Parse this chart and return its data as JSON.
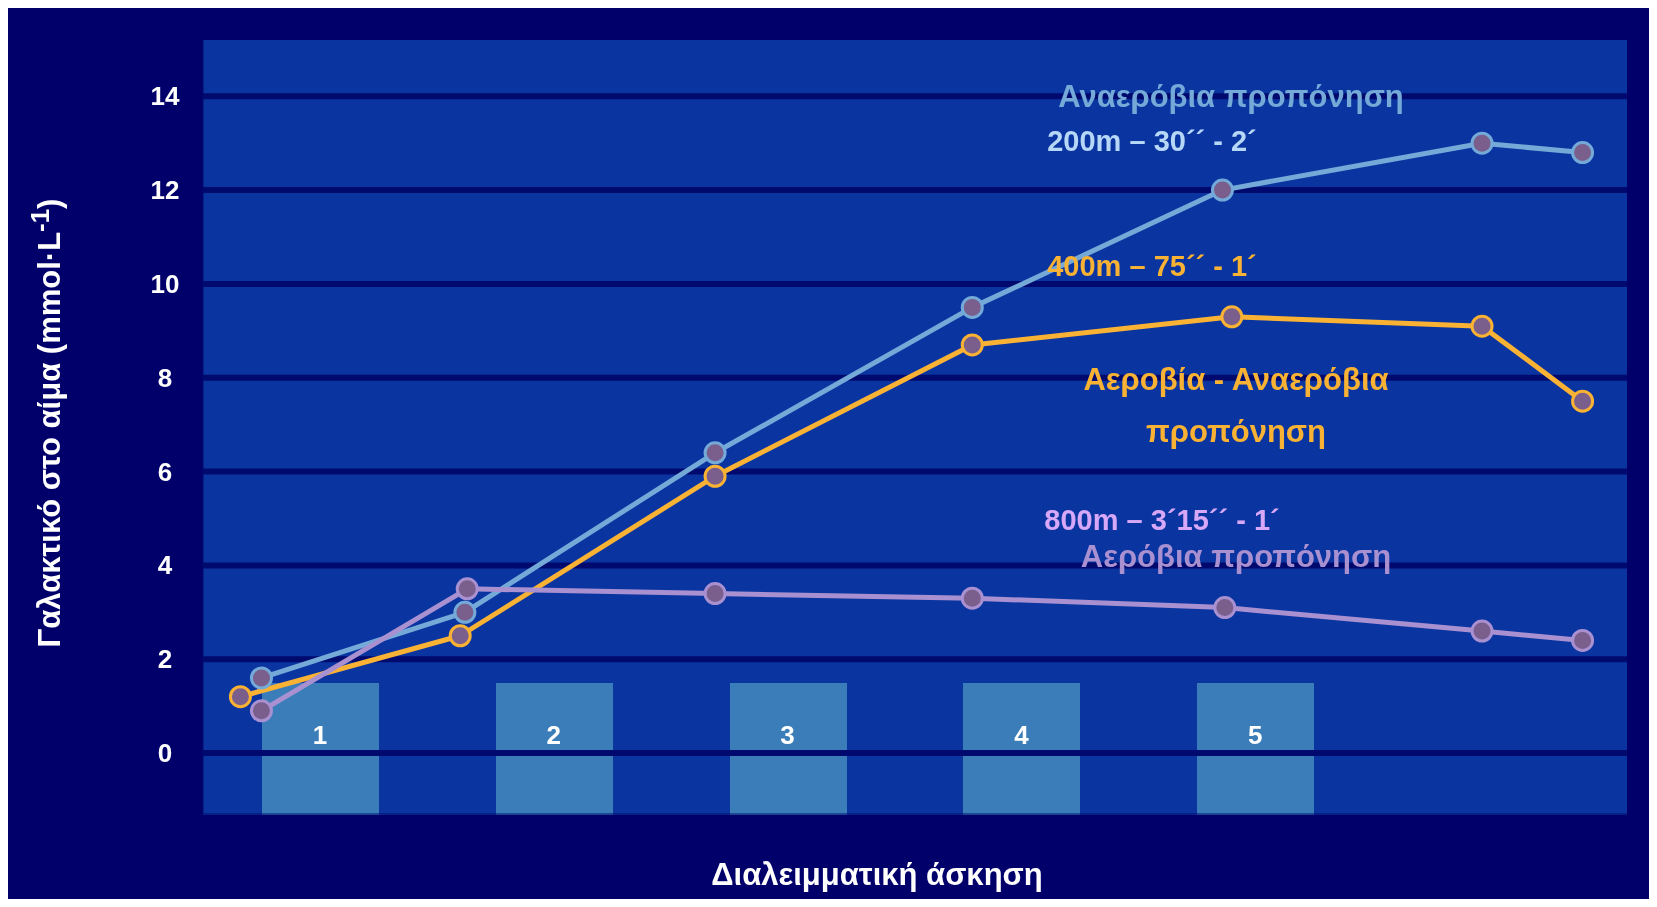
{
  "chart_data": {
    "type": "line",
    "xlabel": "Διαλειμματική άσκηση",
    "ylabel": "Γαλακτικό στο αίμα (mmol·L$^{-1}$)",
    "xlim": [
      0.5,
      6.59
    ],
    "xticks": [
      1,
      2,
      3,
      4,
      5
    ],
    "ylim": [
      -1.3,
      15.2
    ],
    "yticks": [
      0,
      2,
      4,
      6,
      8,
      10,
      12,
      14
    ],
    "grid": "y",
    "marker": "circle",
    "line_style": "solid",
    "series": [
      {
        "name": "Αναερόβια προπόνηση",
        "color": "#74a9d8",
        "x": [
          0.75,
          1.62,
          2.69,
          3.79,
          4.86,
          5.97,
          6.4
        ],
        "values": [
          1.6,
          3.0,
          6.4,
          9.5,
          12.0,
          13.0,
          12.8
        ]
      },
      {
        "name": "Αεροβία - Αναερόβια προπόνηση",
        "color": "#f9b233",
        "x": [
          0.66,
          1.6,
          2.69,
          3.79,
          4.9,
          5.97,
          6.4
        ],
        "values": [
          1.2,
          2.5,
          5.9,
          8.7,
          9.3,
          9.1,
          7.5
        ]
      },
      {
        "name": "Αερόβια προπόνηση",
        "color": "#a990d0",
        "x": [
          0.75,
          1.63,
          2.69,
          3.79,
          4.87,
          5.97,
          6.4
        ],
        "values": [
          0.9,
          3.5,
          3.4,
          3.3,
          3.1,
          2.6,
          2.4
        ]
      }
    ],
    "annotations": [
      "200m – 30´´ - 2´",
      "400m – 75´´ - 1´",
      "800m – 3´15´´ - 1´"
    ]
  }
}
